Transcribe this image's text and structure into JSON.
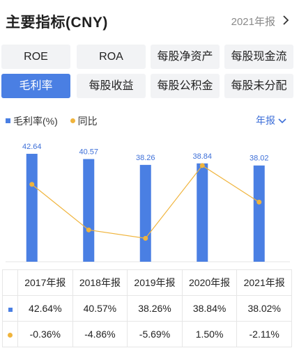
{
  "header": {
    "title": "主要指标(CNY)",
    "period": "2021年报"
  },
  "tabs": [
    {
      "label": "ROE",
      "active": false
    },
    {
      "label": "ROA",
      "active": false
    },
    {
      "label": "每股净资产",
      "active": false
    },
    {
      "label": "每股现金流",
      "active": false
    },
    {
      "label": "毛利率",
      "active": true
    },
    {
      "label": "每股收益",
      "active": false
    },
    {
      "label": "每股公积金",
      "active": false
    },
    {
      "label": "每股未分配",
      "active": false
    }
  ],
  "legend": {
    "series1": "毛利率(%)",
    "series2": "同比"
  },
  "period_select": "年报",
  "colors": {
    "accent": "#4a7fe3",
    "line": "#f0b43c",
    "positive": "#e0463c",
    "negative": "#2e9d55"
  },
  "chart_data": {
    "type": "bar",
    "categories": [
      "2017年报",
      "2018年报",
      "2019年报",
      "2020年报",
      "2021年报"
    ],
    "series": [
      {
        "name": "毛利率(%)",
        "type": "bar",
        "values": [
          42.64,
          40.57,
          38.26,
          38.84,
          38.02
        ]
      },
      {
        "name": "同比",
        "type": "line",
        "values": [
          -0.36,
          -4.86,
          -5.69,
          1.5,
          -2.11
        ]
      }
    ],
    "bar_ylim": [
      0,
      44
    ],
    "line_ylim": [
      -8,
      3
    ],
    "grid": false,
    "legend_position": "top-left"
  },
  "table": {
    "years": [
      "2017年报",
      "2018年报",
      "2019年报",
      "2020年报",
      "2021年报"
    ],
    "margin_row": [
      "42.64%",
      "40.57%",
      "38.26%",
      "38.84%",
      "38.02%"
    ],
    "yoy_row": [
      "-0.36%",
      "-4.86%",
      "-5.69%",
      "1.50%",
      "-2.11%"
    ]
  }
}
